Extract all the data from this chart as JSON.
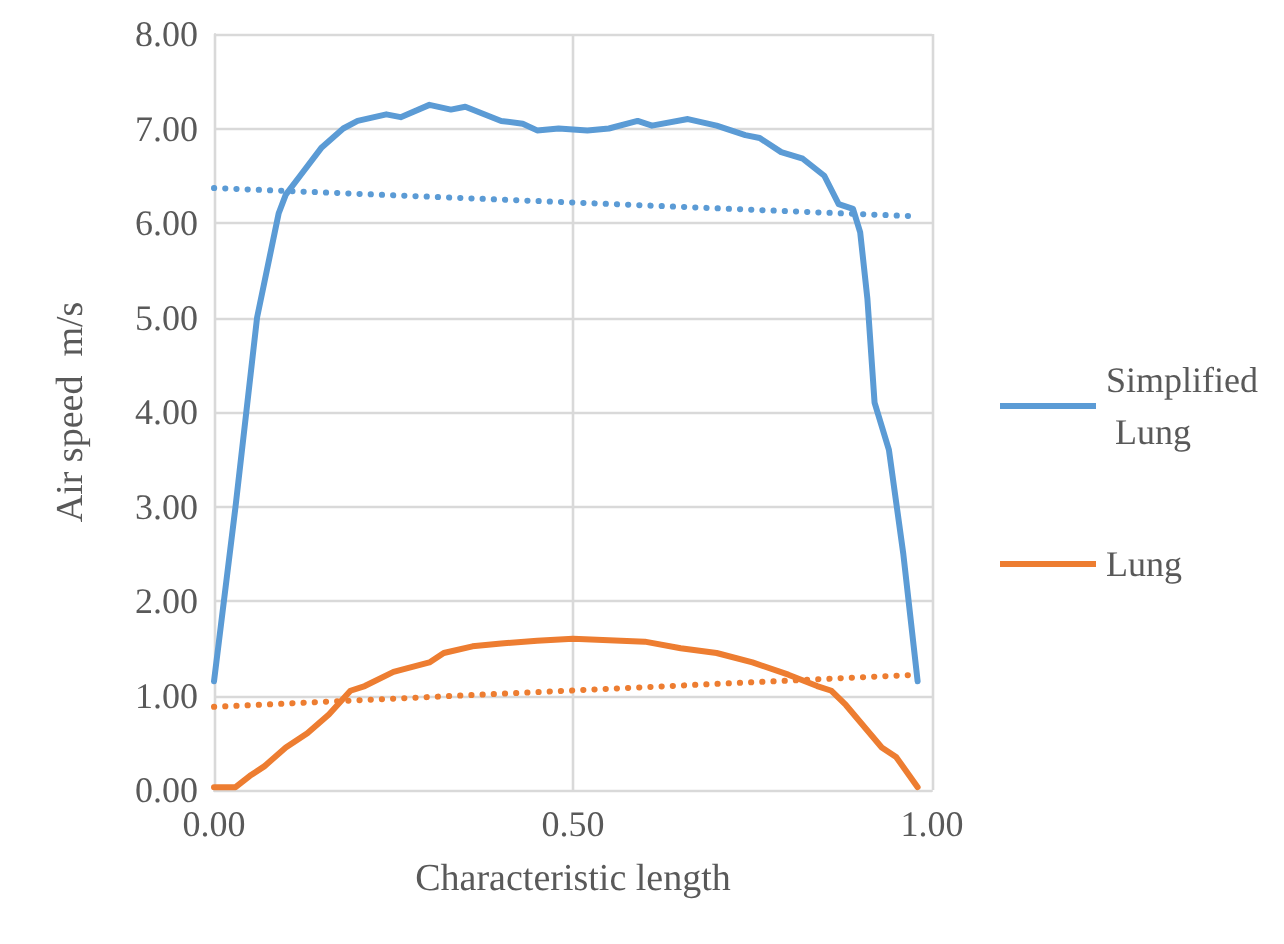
{
  "chart_data": {
    "type": "line",
    "xlabel": "Characteristic length",
    "ylabel": "Air speed  m/s",
    "series": [
      {
        "name": "Simplified Lung",
        "color": "#5b9bd5",
        "x": [
          0,
          0.03,
          0.06,
          0.09,
          0.1,
          0.12,
          0.15,
          0.18,
          0.2,
          0.24,
          0.26,
          0.3,
          0.33,
          0.35,
          0.4,
          0.43,
          0.45,
          0.48,
          0.52,
          0.55,
          0.59,
          0.61,
          0.66,
          0.7,
          0.74,
          0.76,
          0.79,
          0.82,
          0.85,
          0.87,
          0.89,
          0.9,
          0.91,
          0.92,
          0.94,
          0.96,
          0.98
        ],
        "values": [
          1.15,
          3.0,
          5.0,
          6.1,
          6.3,
          6.5,
          6.8,
          7.0,
          7.08,
          7.15,
          7.12,
          7.25,
          7.2,
          7.23,
          7.08,
          7.05,
          6.98,
          7.0,
          6.98,
          7.0,
          7.08,
          7.03,
          7.1,
          7.03,
          6.93,
          6.9,
          6.75,
          6.68,
          6.5,
          6.2,
          6.15,
          5.9,
          5.2,
          4.1,
          3.6,
          2.5,
          1.15
        ]
      },
      {
        "name": "Lung",
        "color": "#ed7d31",
        "x": [
          0,
          0.03,
          0.05,
          0.07,
          0.1,
          0.13,
          0.16,
          0.19,
          0.21,
          0.25,
          0.3,
          0.32,
          0.36,
          0.4,
          0.45,
          0.5,
          0.6,
          0.65,
          0.7,
          0.75,
          0.8,
          0.84,
          0.86,
          0.88,
          0.9,
          0.93,
          0.95,
          0.98
        ],
        "values": [
          0.03,
          0.03,
          0.15,
          0.25,
          0.45,
          0.6,
          0.8,
          1.05,
          1.1,
          1.25,
          1.35,
          1.45,
          1.52,
          1.55,
          1.58,
          1.6,
          1.57,
          1.5,
          1.45,
          1.35,
          1.22,
          1.1,
          1.05,
          0.9,
          0.72,
          0.45,
          0.35,
          0.03
        ]
      },
      {
        "color": "#5b9bd5",
        "line_style": "dotted",
        "x": [
          0,
          0.98
        ],
        "values": [
          6.37,
          6.07
        ]
      },
      {
        "color": "#ed7d31",
        "line_style": "dotted",
        "x": [
          0,
          0.98
        ],
        "values": [
          0.88,
          1.22
        ]
      }
    ],
    "xlim": [
      0,
      1
    ],
    "xticks": [
      {
        "value": 0,
        "label": "0.00"
      },
      {
        "value": 0.5,
        "label": "0.50"
      },
      {
        "value": 1,
        "label": "1.00"
      }
    ],
    "ylim": [
      0,
      8
    ],
    "yticks": [
      {
        "value": 0,
        "label": "0.00"
      },
      {
        "value": 1,
        "label": "1.00"
      },
      {
        "value": 2,
        "label": "2.00"
      },
      {
        "value": 3,
        "label": "3.00"
      },
      {
        "value": 4,
        "label": "4.00"
      },
      {
        "value": 5,
        "label": "5.00"
      },
      {
        "value": 6,
        "label": "6.00"
      },
      {
        "value": 7,
        "label": "7.00"
      },
      {
        "value": 8,
        "label": "8.00"
      }
    ],
    "grid": true,
    "legend": "right",
    "line_style": "solid",
    "marker": "none"
  }
}
